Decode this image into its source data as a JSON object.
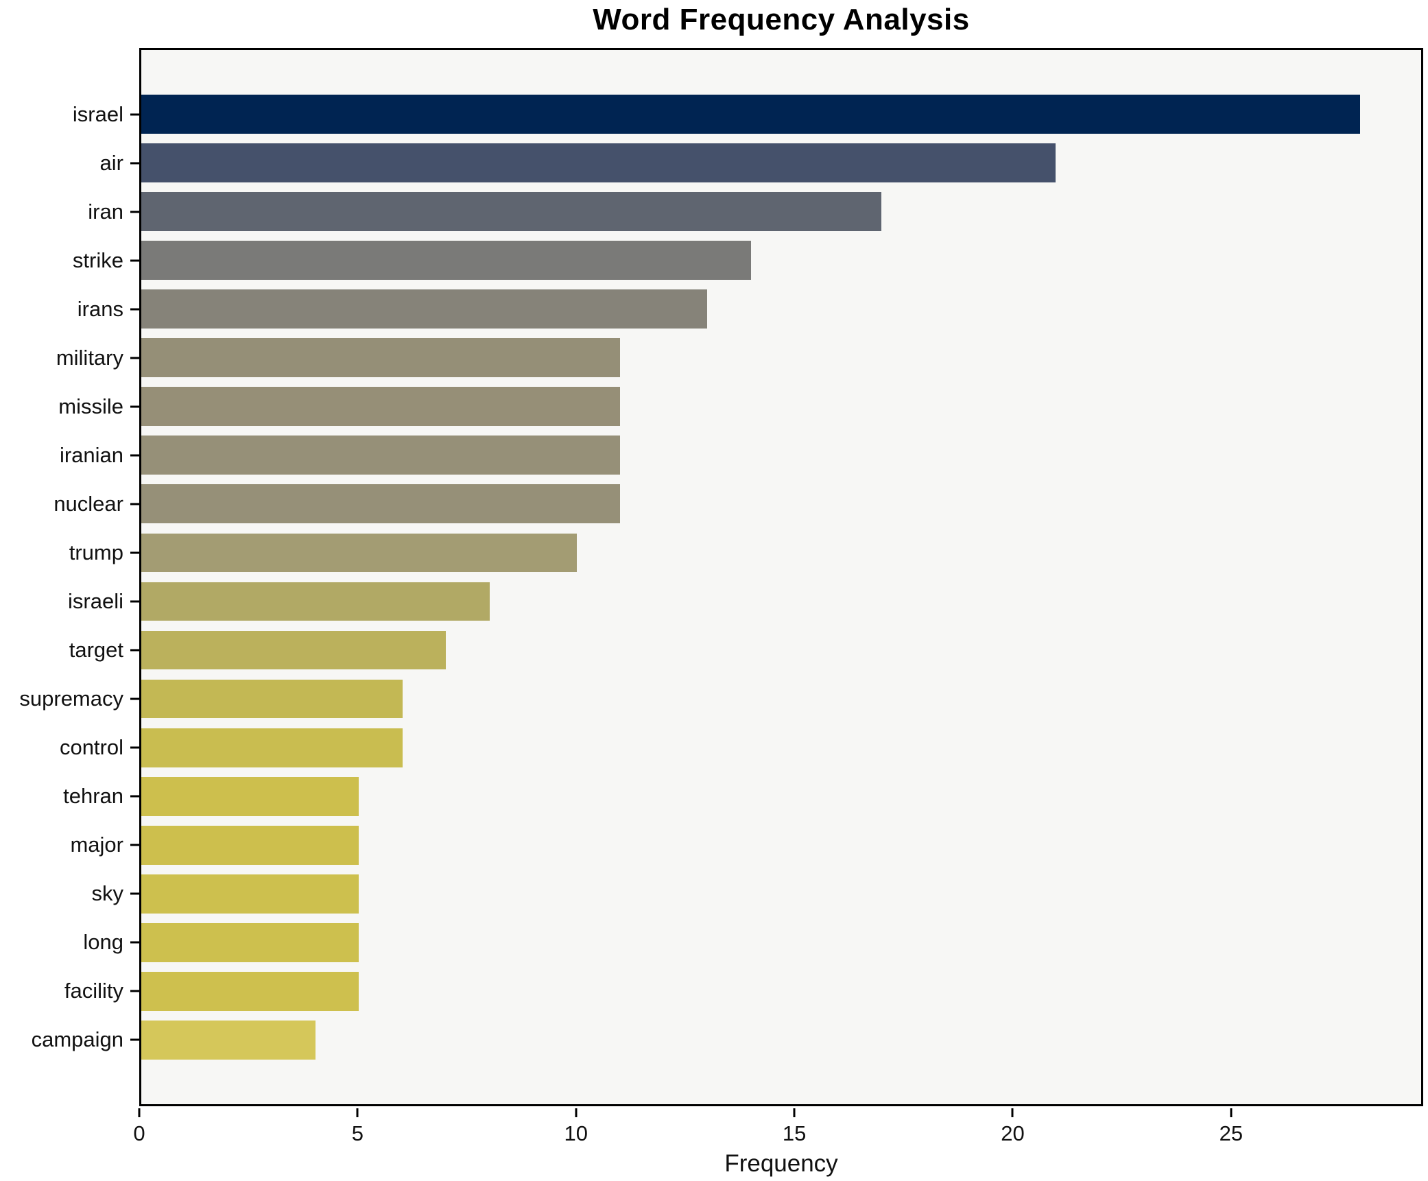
{
  "chart_data": {
    "type": "bar",
    "orientation": "horizontal",
    "title": "Word Frequency Analysis",
    "xlabel": "Frequency",
    "ylabel": "",
    "xlim": [
      0,
      29.4
    ],
    "xticks": [
      0,
      5,
      10,
      15,
      20,
      25
    ],
    "grid": false,
    "legend": null,
    "plot_background": "#f7f7f5",
    "figure_background": "#ffffff",
    "axis_color": "#000000",
    "categories": [
      "israel",
      "air",
      "iran",
      "strike",
      "irans",
      "military",
      "missile",
      "iranian",
      "nuclear",
      "trump",
      "israeli",
      "target",
      "supremacy",
      "control",
      "tehran",
      "major",
      "sky",
      "long",
      "facility",
      "campaign"
    ],
    "values": [
      28,
      21,
      17,
      14,
      13,
      11,
      11,
      11,
      11,
      10,
      8,
      7,
      6,
      6,
      5,
      5,
      5,
      5,
      5,
      4
    ],
    "bar_colors": [
      "#002452",
      "#45516b",
      "#5f6570",
      "#7a7a78",
      "#868379",
      "#958f77",
      "#968f77",
      "#969078",
      "#969078",
      "#a39c73",
      "#b1a965",
      "#bbb15c",
      "#c3b854",
      "#c9bd50",
      "#cdbf4d",
      "#cdbf4d",
      "#cdc04e",
      "#cdc04e",
      "#cec04e",
      "#d5c75a"
    ]
  }
}
